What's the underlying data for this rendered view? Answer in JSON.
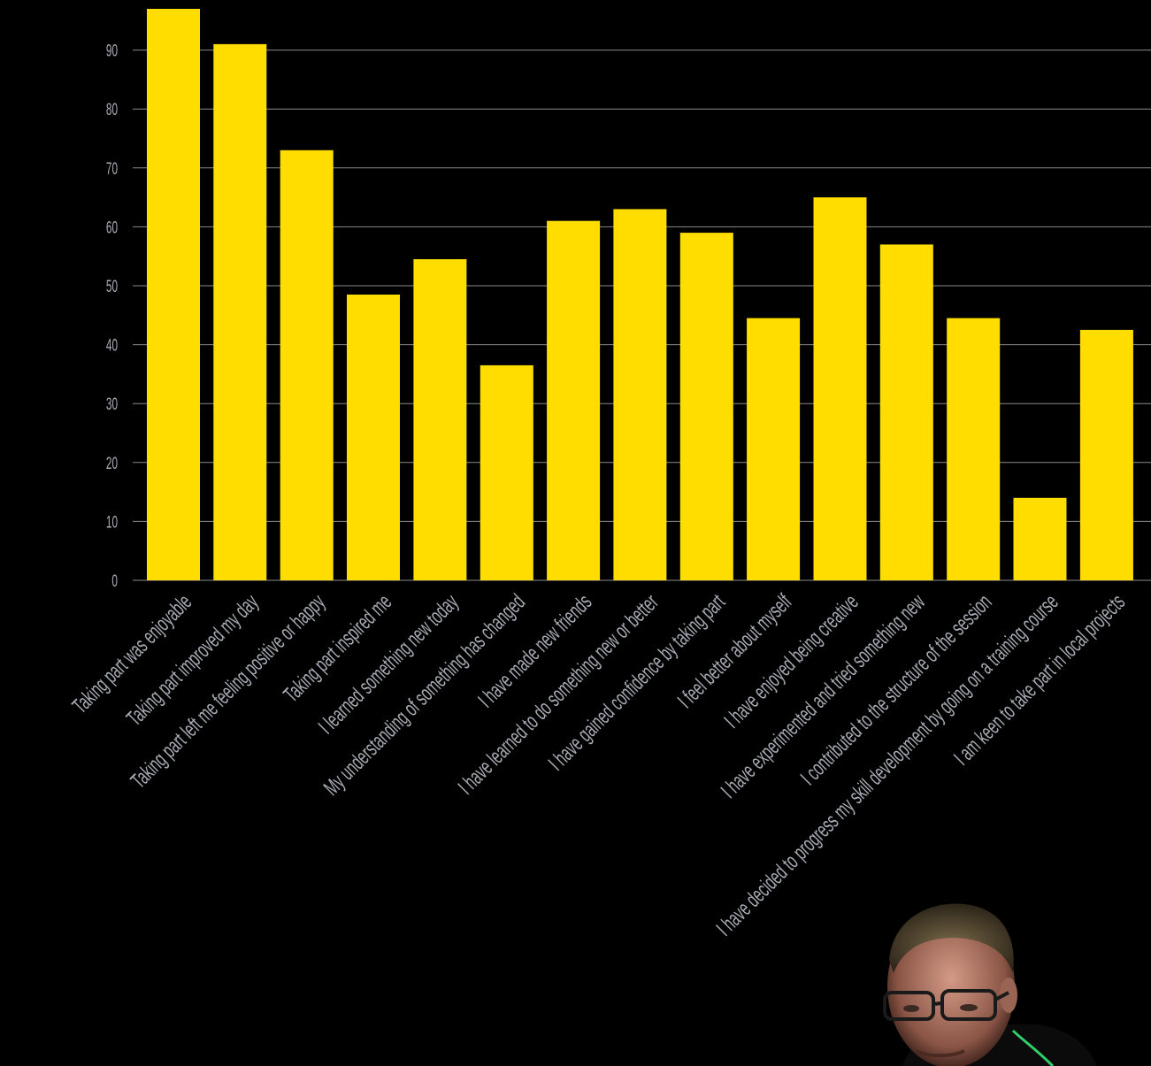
{
  "chart_data": {
    "type": "bar",
    "categories": [
      "Taking part was enjoyable",
      "Taking part improved my day",
      "Taking part left me feeling positive or happy",
      "Taking part inspired me",
      "I learned something new today",
      "My understanding of something has changed",
      "I have made new friends",
      "I have learned to do something new or better",
      "I have gained confidence by taking part",
      "I feel better about myself",
      "I have enjoyed being creative",
      "I have experimented and tried something new",
      "I contributed to the structure of the session",
      "I have decided to progress my skill development by going on a training course",
      "I am keen to take part in local projects"
    ],
    "values": [
      97,
      91,
      73,
      48.5,
      54.5,
      36.5,
      61,
      63,
      59,
      44.5,
      65,
      57,
      44.5,
      14,
      42.5
    ],
    "yticks": [
      0,
      10,
      20,
      30,
      40,
      50,
      60,
      70,
      80,
      90
    ],
    "ylim": [
      0,
      97
    ],
    "grid": true,
    "bar_color": "#ffdd00",
    "text_color": "#a7abb4",
    "grid_color": "#8a8a8a",
    "background": "#000000"
  },
  "photo": {
    "icon": "person-with-glasses-icon"
  }
}
